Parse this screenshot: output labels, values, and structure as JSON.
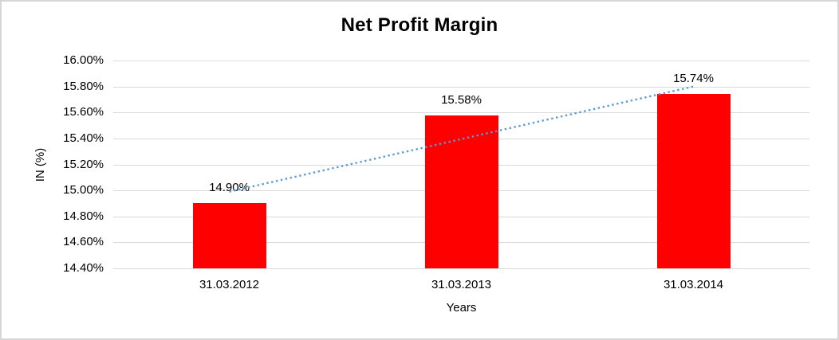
{
  "chart_data": {
    "type": "bar",
    "title": "Net Profit Margin",
    "xlabel": "Years",
    "ylabel": "IN (%)",
    "categories": [
      "31.03.2012",
      "31.03.2013",
      "31.03.2014"
    ],
    "values": [
      14.9,
      15.58,
      15.74
    ],
    "data_labels": [
      "14.90%",
      "15.58%",
      "15.74%"
    ],
    "ylim": [
      14.4,
      16.0
    ],
    "ytick_interval": 0.2,
    "ytick_labels": [
      "16.00%",
      "15.80%",
      "15.60%",
      "15.40%",
      "15.20%",
      "15.00%",
      "14.80%",
      "14.60%",
      "14.40%"
    ],
    "grid": true,
    "legend": "none",
    "trendline": {
      "type": "linear",
      "line_style": "dotted",
      "start_value": 14.99,
      "end_value": 15.8
    },
    "colors": {
      "bar": "#FF0000",
      "trendline": "#5B9BD5",
      "gridline": "#D9D9D9",
      "text": "#000000",
      "background": "#FFFFFF",
      "border": "#D6D6D6"
    }
  }
}
